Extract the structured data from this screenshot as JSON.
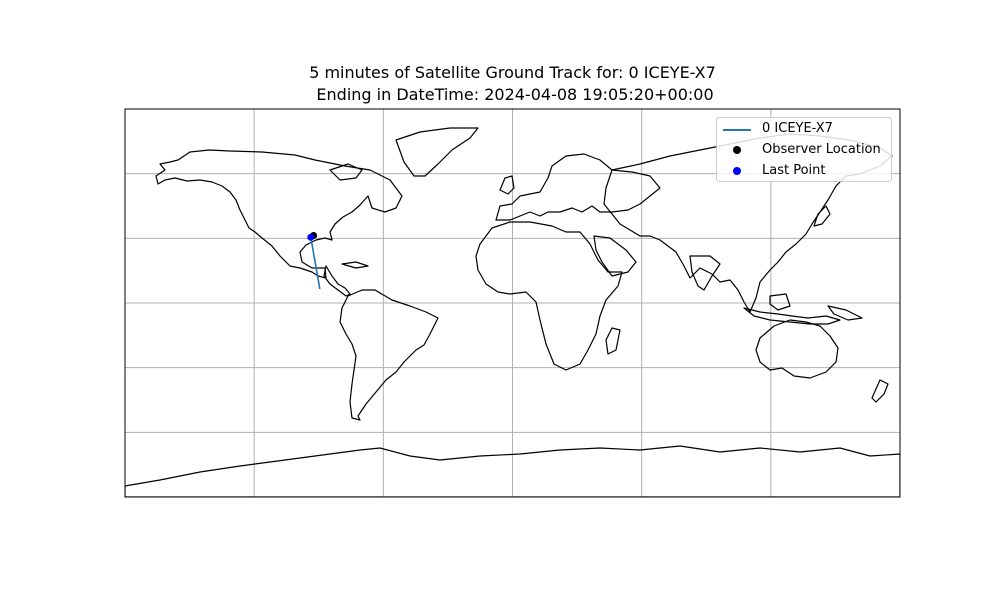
{
  "title_line1": "5 minutes of Satellite Ground Track for: 0 ICEYE-X7",
  "title_line2": " Ending in DateTime: 2024-04-08 19:05:20+00:00",
  "legend": [
    {
      "label": "0 ICEYE-X7",
      "marker": "line",
      "color": "#1f77b4"
    },
    {
      "label": "Observer Location",
      "marker": "dot",
      "color": "#000000"
    },
    {
      "label": "Last Point",
      "marker": "dot",
      "color": "#0000ff"
    }
  ],
  "map": {
    "projection": "PlateCarree",
    "extent": {
      "lon": [
        -180,
        180
      ],
      "lat": [
        -90,
        90
      ]
    },
    "gridlines": true,
    "grid_lon": [
      -120,
      -60,
      0,
      60,
      120
    ],
    "grid_lat": [
      -60,
      -30,
      0,
      30,
      60
    ],
    "legend_position": "upper-right"
  },
  "chart_data": {
    "type": "map",
    "series": [
      {
        "name": "0 ICEYE-X7",
        "kind": "ground-track",
        "color": "#1f77b4",
        "points": [
          [
            -89.5,
            6.5
          ],
          [
            -90.2,
            10.5
          ],
          [
            -90.9,
            14.5
          ],
          [
            -91.6,
            18.5
          ],
          [
            -92.3,
            22.5
          ],
          [
            -93.0,
            26.5
          ],
          [
            -93.7,
            30.5
          ]
        ]
      },
      {
        "name": "Observer Location",
        "kind": "point",
        "color": "#000000",
        "points": [
          [
            -92.4,
            31.3
          ]
        ]
      },
      {
        "name": "Last Point",
        "kind": "point",
        "color": "#0000ff",
        "points": [
          [
            -93.7,
            30.5
          ]
        ]
      }
    ]
  }
}
